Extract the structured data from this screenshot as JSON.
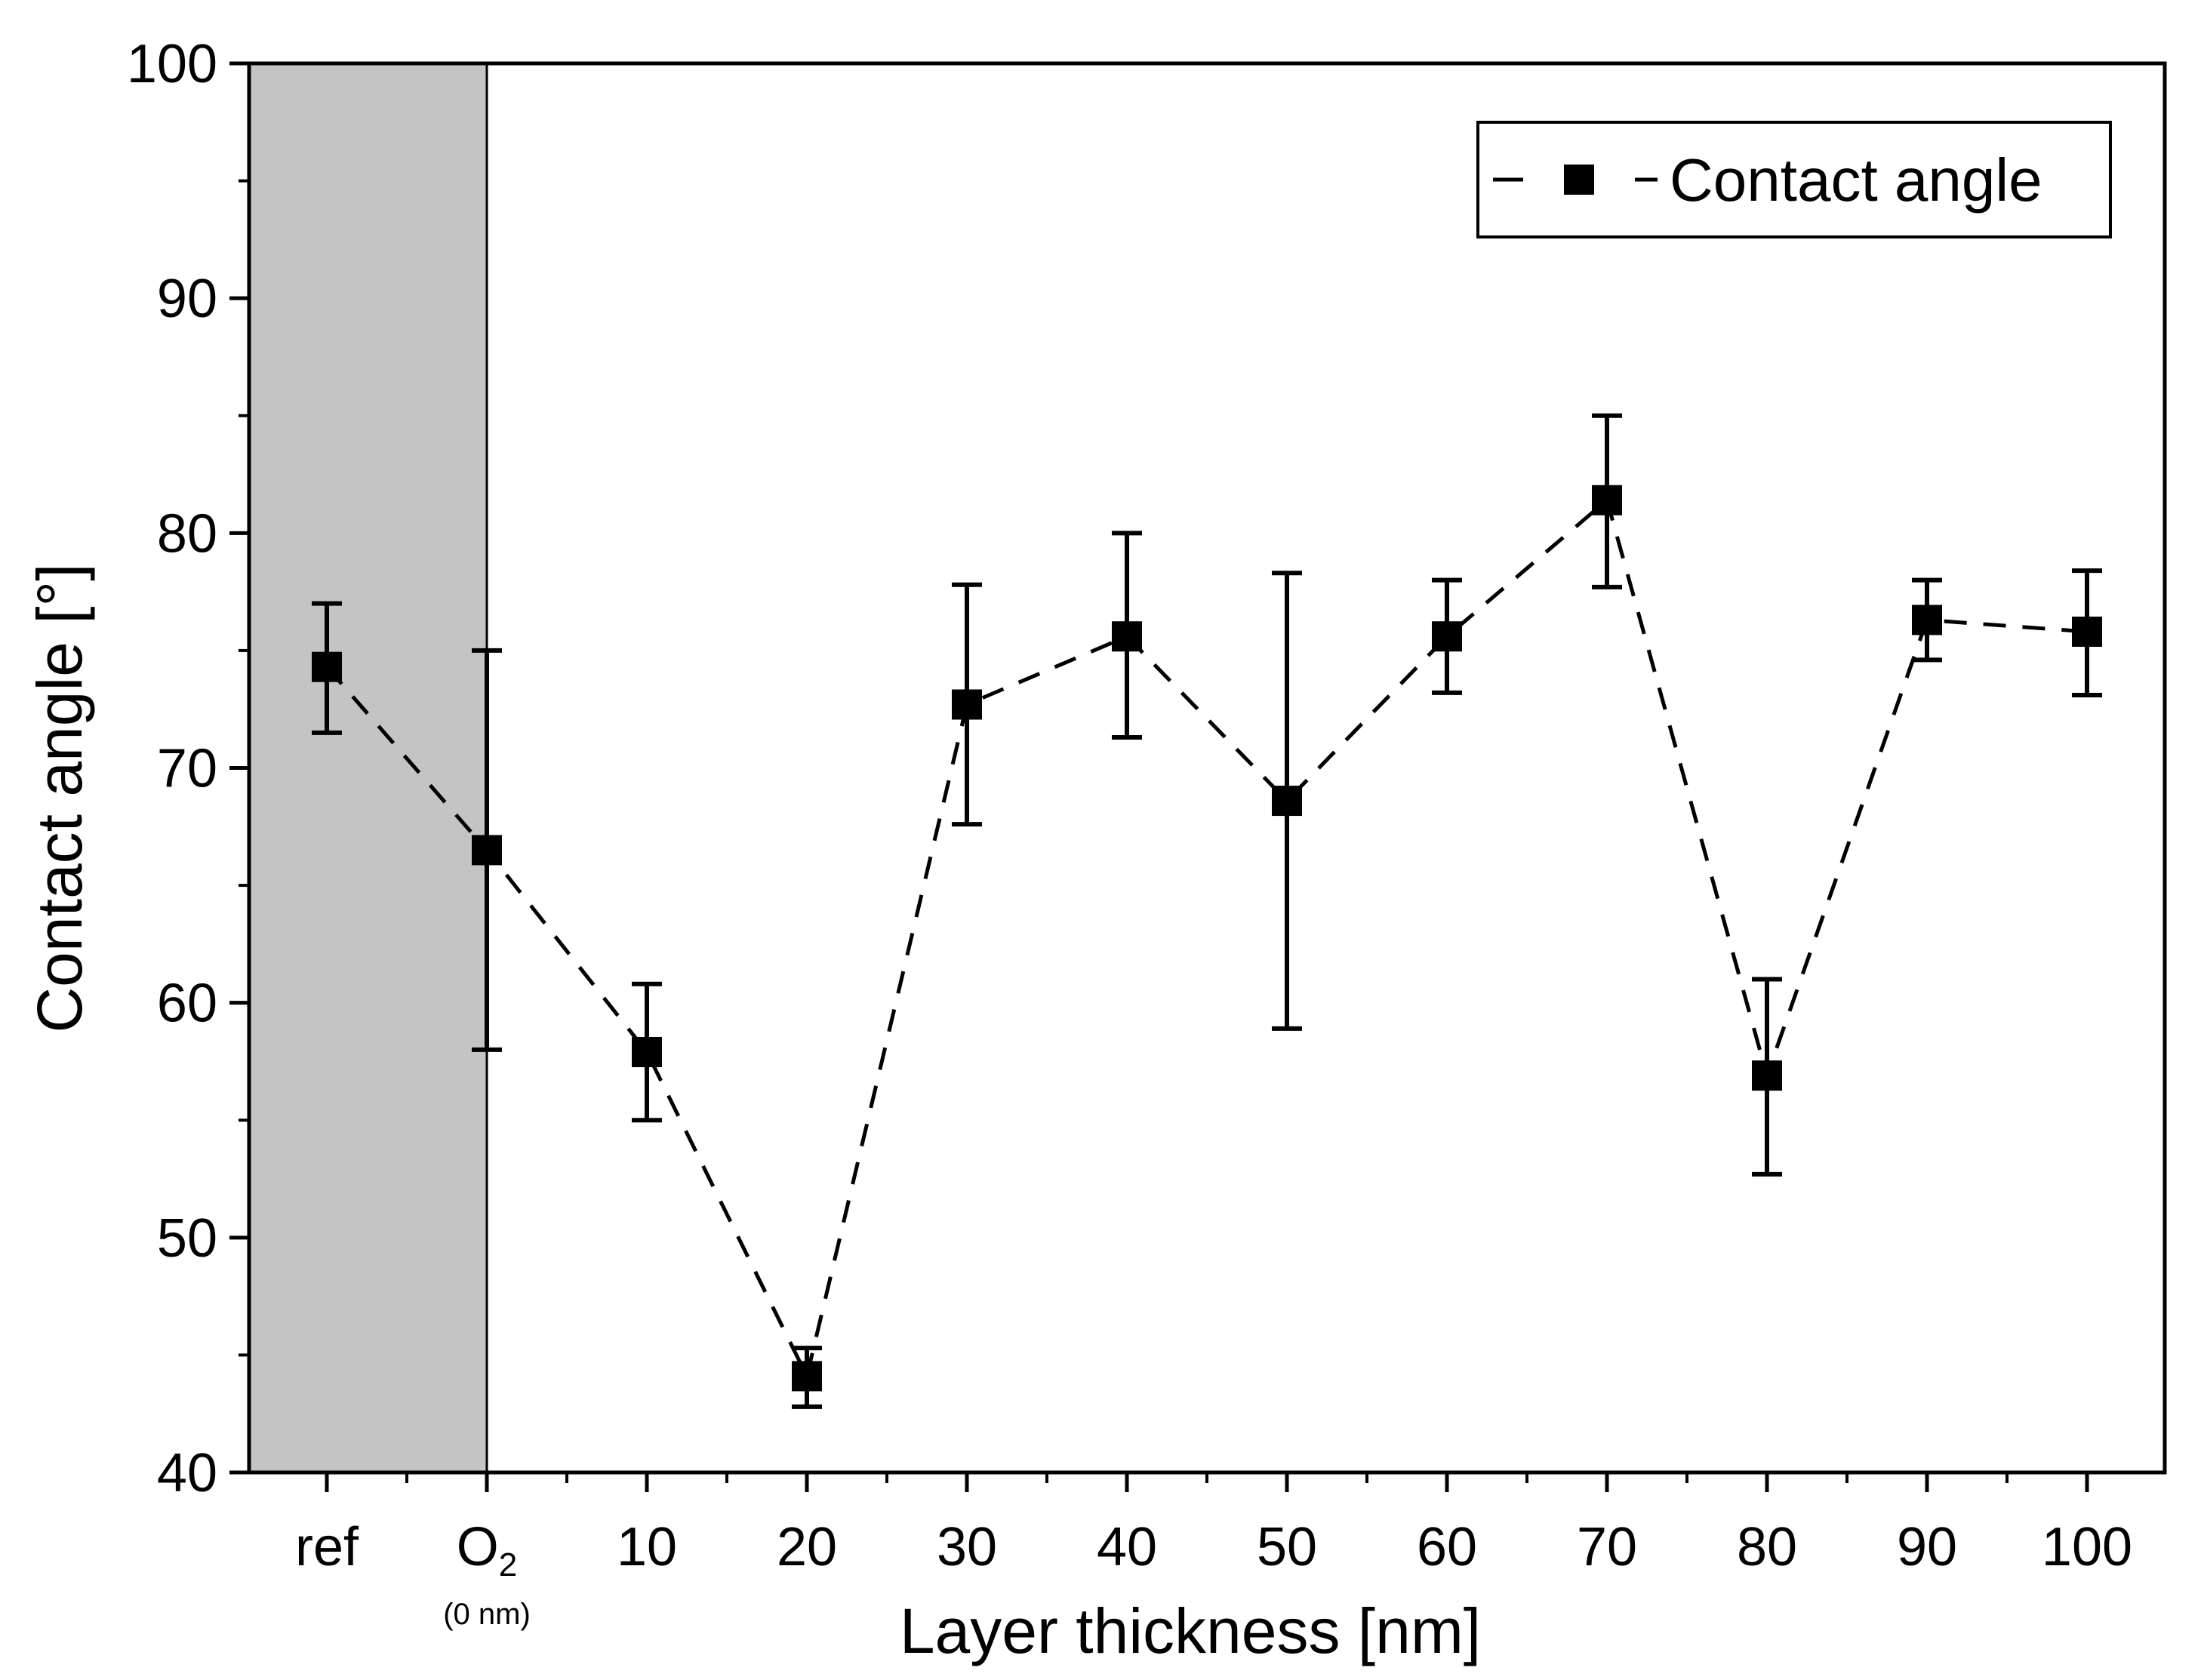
{
  "chart_data": {
    "type": "line",
    "title": "",
    "xlabel": "Layer thickness [nm]",
    "ylabel": "Contact angle [°]",
    "ylim": [
      40,
      100
    ],
    "yticks": [
      40,
      50,
      60,
      70,
      80,
      90,
      100
    ],
    "grid": false,
    "legend_position": "top-right",
    "shaded_region": {
      "from_category": "ref",
      "to_category": "O2",
      "color": "#c4c4c4"
    },
    "categories": [
      {
        "main": "ref",
        "sub": "",
        "sup": ""
      },
      {
        "main": "O",
        "sub": "2",
        "sup": "",
        "note": "(0 nm)"
      },
      {
        "main": "10"
      },
      {
        "main": "20"
      },
      {
        "main": "30"
      },
      {
        "main": "40"
      },
      {
        "main": "50"
      },
      {
        "main": "60"
      },
      {
        "main": "70"
      },
      {
        "main": "80"
      },
      {
        "main": "90"
      },
      {
        "main": "100"
      }
    ],
    "series": [
      {
        "name": "Contact angle",
        "marker": "square",
        "line_style": "dashed",
        "color": "#000000",
        "values": [
          74.3,
          66.5,
          57.9,
          44.1,
          72.7,
          75.6,
          68.6,
          75.6,
          81.4,
          56.9,
          76.3,
          75.8
        ],
        "err_low": [
          71.5,
          58.0,
          55.0,
          42.8,
          67.6,
          71.3,
          58.9,
          73.2,
          77.7,
          52.7,
          74.6,
          73.1
        ],
        "err_high": [
          77.0,
          75.0,
          60.8,
          45.3,
          77.8,
          80.0,
          78.3,
          78.0,
          85.0,
          61.0,
          78.0,
          78.4
        ]
      }
    ]
  }
}
